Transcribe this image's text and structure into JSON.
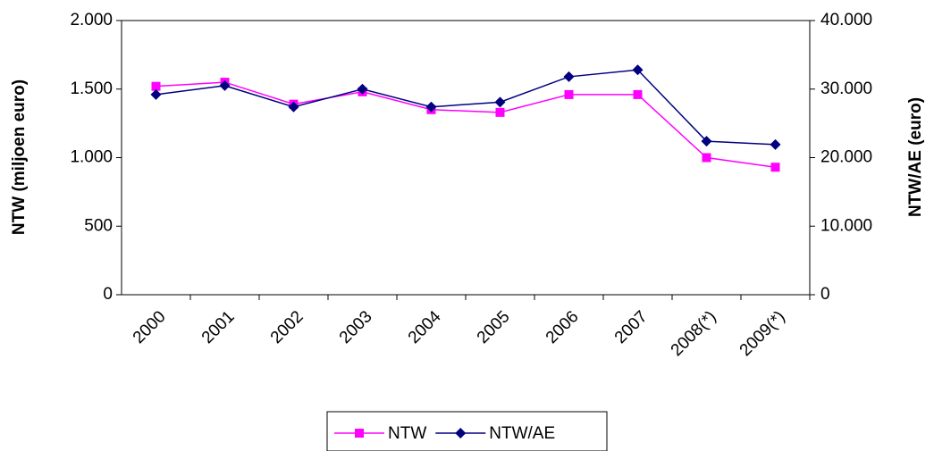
{
  "chart_data": {
    "type": "line",
    "y_label": "NTW (miljoen euro)",
    "y2_label": "NTW/AE (euro)",
    "categories": [
      "2000",
      "2001",
      "2002",
      "2003",
      "2004",
      "2005",
      "2006",
      "2007",
      "2008(*)",
      "2009(*)"
    ],
    "series": [
      {
        "name": "NTW",
        "color": "#ff00ff",
        "marker": "square",
        "axis": "y",
        "values": [
          1520,
          1550,
          1390,
          1480,
          1350,
          1330,
          1460,
          1460,
          1000,
          930
        ]
      },
      {
        "name": "NTW/AE",
        "color": "#000080",
        "marker": "diamond",
        "axis": "y2",
        "values": [
          29200,
          30500,
          27400,
          30000,
          27400,
          28100,
          31800,
          32800,
          22400,
          21900
        ]
      }
    ],
    "ylim": [
      0,
      2000
    ],
    "yticks": [
      0,
      500,
      {
        "value": 1000,
        "label": "1.000"
      },
      {
        "value": 1500,
        "label": "1.500"
      },
      {
        "value": 2000,
        "label": "2.000"
      }
    ],
    "y2lim": [
      0,
      40000
    ],
    "y2ticks": [
      0,
      {
        "value": 10000,
        "label": "10.000"
      },
      {
        "value": 20000,
        "label": "20.000"
      },
      {
        "value": 30000,
        "label": "30.000"
      },
      {
        "value": 40000,
        "label": "40.000"
      }
    ],
    "legend": "bottom"
  }
}
